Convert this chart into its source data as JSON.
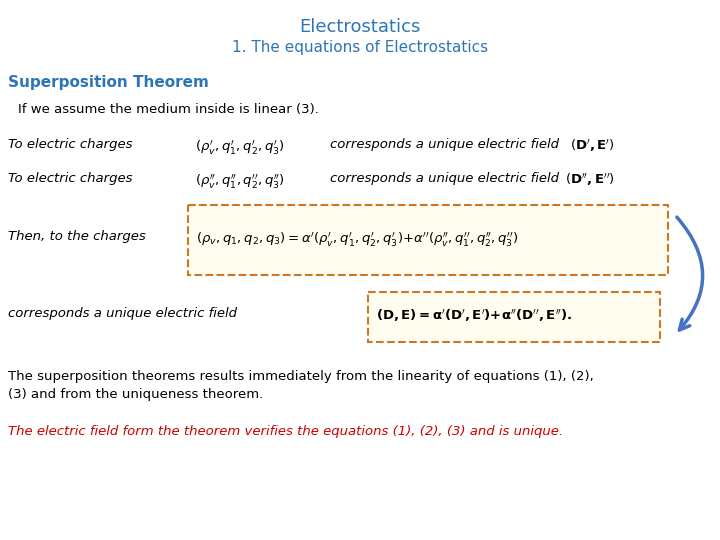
{
  "title": "Electrostatics",
  "subtitle": "1. The equations of Electrostatics",
  "title_color": "#2E75B6",
  "subtitle_color": "#2E75B6",
  "section_color": "#2E75B6",
  "section": "Superposition Theorem",
  "linear_text": "If we assume the medium inside is linear (3).",
  "row1_label": "To electric charges",
  "row2_label": "To electric charges",
  "then_label": "Then, to the charges",
  "field_label": "corresponds a unique electric field",
  "para1_line1": "The superposition theorems results immediately from the linearity of equations (1), (2),",
  "para1_line2": "(3) and from the uniqueness theorem.",
  "para2": "The electric field form the theorem verifies the equations (1), (2), (3) and is unique.",
  "para2_color": "#CC0000",
  "bg_color": "#FFFFFF",
  "text_color": "#000000",
  "box_color": "#CC7722",
  "arrow_color": "#4472C4"
}
